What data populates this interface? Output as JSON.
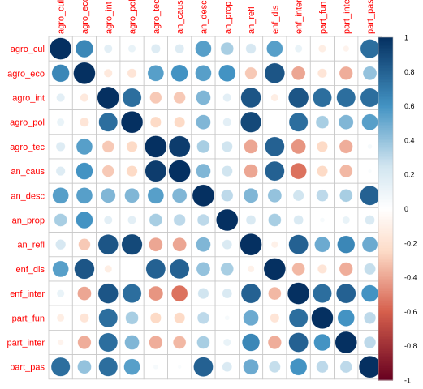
{
  "chart_data": {
    "type": "heatmap",
    "variables": [
      "agro_cul",
      "agro_eco",
      "agro_int",
      "agro_pol",
      "agro_tec",
      "an_caus",
      "an_desc",
      "an_prop",
      "an_refl",
      "enf_dis",
      "enf_inter",
      "part_fun",
      "part_inter",
      "part_pas"
    ],
    "matrix": [
      [
        1.0,
        0.65,
        0.15,
        0.12,
        0.18,
        0.18,
        0.55,
        0.35,
        0.22,
        0.55,
        0.12,
        -0.12,
        -0.08,
        0.75
      ],
      [
        0.65,
        1.0,
        -0.15,
        -0.18,
        0.55,
        0.6,
        0.55,
        0.6,
        -0.3,
        0.85,
        -0.4,
        -0.18,
        -0.38,
        0.4
      ],
      [
        0.15,
        -0.15,
        1.0,
        0.75,
        -0.3,
        -0.3,
        0.45,
        0.15,
        0.85,
        -0.12,
        0.85,
        0.75,
        0.75,
        0.75
      ],
      [
        0.12,
        -0.18,
        0.75,
        1.0,
        -0.25,
        -0.25,
        0.45,
        0.15,
        0.9,
        0.0,
        0.75,
        0.35,
        0.45,
        0.55
      ],
      [
        0.18,
        0.55,
        -0.3,
        -0.25,
        1.0,
        0.95,
        0.35,
        0.25,
        -0.4,
        0.8,
        -0.45,
        -0.25,
        -0.38,
        0.05
      ],
      [
        0.18,
        0.6,
        -0.3,
        -0.25,
        0.95,
        1.0,
        0.45,
        0.25,
        -0.4,
        0.8,
        -0.55,
        -0.25,
        -0.35,
        0.03
      ],
      [
        0.55,
        0.55,
        0.45,
        0.45,
        0.55,
        0.45,
        1.0,
        0.3,
        0.45,
        0.4,
        0.25,
        0.3,
        0.35,
        0.8
      ],
      [
        0.35,
        0.6,
        0.15,
        0.15,
        0.35,
        0.3,
        0.3,
        1.0,
        0.2,
        0.35,
        0.2,
        0.05,
        0.12,
        0.2
      ],
      [
        0.22,
        -0.3,
        0.85,
        0.9,
        -0.4,
        -0.4,
        0.45,
        0.2,
        1.0,
        -0.1,
        0.8,
        0.5,
        0.65,
        0.5
      ],
      [
        0.55,
        0.85,
        -0.12,
        0.0,
        0.8,
        0.8,
        0.4,
        0.35,
        -0.1,
        1.0,
        -0.35,
        -0.18,
        -0.38,
        0.28
      ],
      [
        0.12,
        -0.4,
        0.85,
        0.75,
        -0.45,
        -0.55,
        0.25,
        0.2,
        0.8,
        -0.35,
        1.0,
        0.75,
        0.8,
        0.6
      ],
      [
        -0.12,
        -0.18,
        0.75,
        0.35,
        -0.25,
        -0.25,
        0.3,
        0.05,
        0.5,
        -0.18,
        0.75,
        1.0,
        0.6,
        0.3
      ],
      [
        -0.08,
        -0.38,
        0.75,
        0.45,
        -0.38,
        -0.35,
        0.35,
        0.12,
        0.65,
        -0.38,
        0.8,
        0.6,
        1.0,
        0.3
      ],
      [
        0.75,
        0.4,
        0.75,
        0.55,
        0.05,
        0.03,
        0.8,
        0.2,
        0.5,
        0.28,
        0.6,
        0.3,
        0.3,
        1.0
      ]
    ],
    "colorbar": {
      "range": [
        -1,
        1
      ],
      "ticks": [
        "1",
        "0.8",
        "0.6",
        "0.4",
        "0.2",
        "0",
        "-0.2",
        "-0.4",
        "-0.6",
        "-0.8",
        "-1"
      ],
      "colors": {
        "neg_dark": "#67001f",
        "neg_mid": "#d6604d",
        "neg_light": "#fddbc7",
        "zero": "#ffffff",
        "pos_light": "#d1e5f0",
        "pos_mid": "#4393c3",
        "pos_dark": "#053061"
      }
    },
    "label_color": "#ff0000",
    "grid": true
  }
}
